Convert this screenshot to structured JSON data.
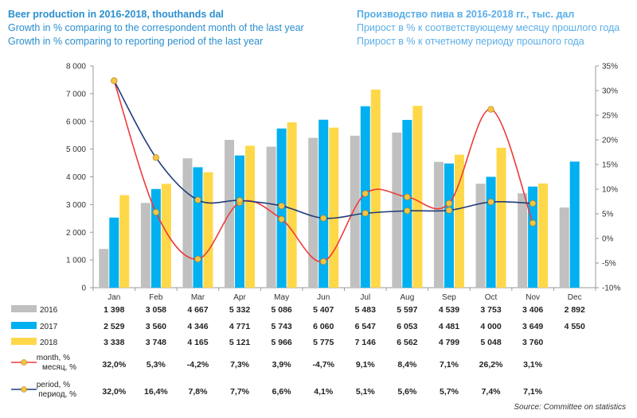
{
  "header": {
    "en": {
      "title": "Beer production in 2016-2018, thouthands dal",
      "subtitle1": "Growth in % comparing to the correspondent month of the last year",
      "subtitle2": "Growth in % comparing to reporting period of the last year"
    },
    "ru": {
      "title": "Производство пива в 2016-2018 гг., тыс. дал",
      "subtitle1": "Прирост в % к соответствующему месяцу прошлого года",
      "subtitle2": "Прирост в % к отчетному периоду прошлого года"
    }
  },
  "source": "Source: Committee on statistics",
  "chart_data": {
    "type": "bar",
    "categories": [
      "Jan",
      "Feb",
      "Mar",
      "Apr",
      "May",
      "Jun",
      "Jul",
      "Aug",
      "Sep",
      "Oct",
      "Nov",
      "Dec"
    ],
    "y_left": {
      "min": 0,
      "max": 8000,
      "ticks": [
        0,
        1000,
        2000,
        3000,
        4000,
        5000,
        6000,
        7000,
        8000
      ],
      "tick_labels": [
        "0",
        "1 000",
        "2 000",
        "3 000",
        "4 000",
        "5 000",
        "6 000",
        "7 000",
        "8 000"
      ]
    },
    "y_right": {
      "min": -10,
      "max": 35,
      "ticks": [
        -10,
        -5,
        0,
        5,
        10,
        15,
        20,
        25,
        30,
        35
      ],
      "tick_labels": [
        "-10%",
        "-5%",
        "0%",
        "5%",
        "10%",
        "15%",
        "20%",
        "25%",
        "30%",
        "35%"
      ]
    },
    "series": [
      {
        "name": "2016",
        "color": "#c0c0c0",
        "kind": "bar",
        "values": [
          1398,
          3058,
          4667,
          5332,
          5086,
          5407,
          5483,
          5597,
          4539,
          3753,
          3406,
          2892
        ],
        "labels": [
          "1 398",
          "3 058",
          "4 667",
          "5 332",
          "5 086",
          "5 407",
          "5 483",
          "5 597",
          "4 539",
          "3 753",
          "3 406",
          "2 892"
        ]
      },
      {
        "name": "2017",
        "color": "#00b0f0",
        "kind": "bar",
        "values": [
          2529,
          3560,
          4346,
          4771,
          5743,
          6060,
          6547,
          6053,
          4481,
          4000,
          3649,
          4550
        ],
        "labels": [
          "2 529",
          "3 560",
          "4 346",
          "4 771",
          "5 743",
          "6 060",
          "6 547",
          "6 053",
          "4 481",
          "4 000",
          "3 649",
          "4 550"
        ]
      },
      {
        "name": "2018",
        "color": "#ffd84a",
        "kind": "bar",
        "values": [
          3338,
          3748,
          4165,
          5121,
          5966,
          5775,
          7146,
          6562,
          4799,
          5048,
          3760,
          null
        ],
        "labels": [
          "3 338",
          "3 748",
          "4 165",
          "5 121",
          "5 966",
          "5 775",
          "7 146",
          "6 562",
          "4 799",
          "5 048",
          "3 760",
          ""
        ]
      },
      {
        "name": "month, %\nмесяц, %",
        "color": "#ee3b3b",
        "marker": "#f6c343",
        "kind": "line",
        "values": [
          32.0,
          5.3,
          -4.2,
          7.3,
          3.9,
          -4.7,
          9.1,
          8.4,
          7.1,
          26.2,
          3.1,
          null
        ],
        "labels": [
          "32,0%",
          "5,3%",
          "-4,2%",
          "7,3%",
          "3,9%",
          "-4,7%",
          "9,1%",
          "8,4%",
          "7,1%",
          "26,2%",
          "3,1%",
          ""
        ]
      },
      {
        "name": "period, %\nпериод, %",
        "color": "#1f3a7a",
        "marker": "#f6c343",
        "kind": "line",
        "values": [
          32.0,
          16.4,
          7.8,
          7.7,
          6.6,
          4.1,
          5.1,
          5.6,
          5.7,
          7.4,
          7.1,
          null
        ],
        "labels": [
          "32,0%",
          "16,4%",
          "7,8%",
          "7,7%",
          "6,6%",
          "4,1%",
          "5,1%",
          "5,6%",
          "5,7%",
          "7,4%",
          "7,1%",
          ""
        ]
      }
    ],
    "legend_placement": "table-left",
    "grid": false
  }
}
